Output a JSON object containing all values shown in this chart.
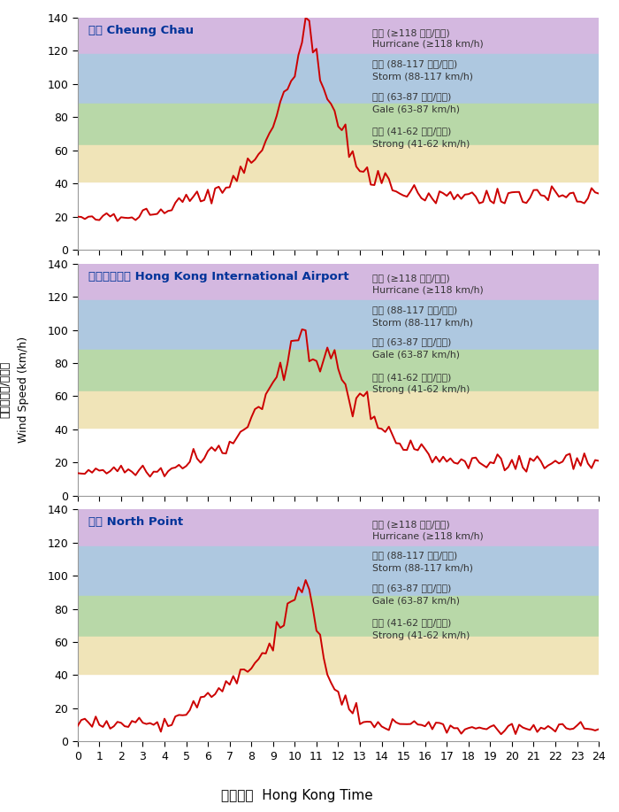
{
  "stations": [
    "长洲 Cheung Chau",
    "香港國際機場 Hong Kong International Airport",
    "北角 North Point"
  ],
  "ylabel_cn": "風速（公里/小時）",
  "ylabel_en": "Wind Speed (km/h)",
  "xlabel_cn": "香港時間",
  "xlabel_en": "Hong Kong Time",
  "wind_bands": [
    {
      "label_cn": "飆風 (≥118 公里/小時)",
      "label_en": "Hurricane (≥118 km/h)",
      "ymin": 118,
      "ymax": 140,
      "color": "#d4b8e0"
    },
    {
      "label_cn": "暴風 (88-117 公里/小時)",
      "label_en": "Storm (88-117 km/h)",
      "ymin": 88,
      "ymax": 118,
      "color": "#aec8e0"
    },
    {
      "label_cn": "烈風 (63-87 公里/小時)",
      "label_en": "Gale (63-87 km/h)",
      "ymin": 63,
      "ymax": 88,
      "color": "#b8d8a8"
    },
    {
      "label_cn": "強風 (41-62 公里/小時)",
      "label_en": "Strong (41-62 km/h)",
      "ymin": 41,
      "ymax": 63,
      "color": "#f0e4b8"
    },
    {
      "label_cn": "",
      "label_en": "",
      "ymin": 0,
      "ymax": 41,
      "color": "#ffffff"
    }
  ],
  "ylim": [
    0,
    140
  ],
  "xlim": [
    0,
    24
  ],
  "xticks": [
    0,
    1,
    2,
    3,
    4,
    5,
    6,
    7,
    8,
    9,
    10,
    11,
    12,
    13,
    14,
    15,
    16,
    17,
    18,
    19,
    20,
    21,
    22,
    23,
    24
  ],
  "yticks": [
    0,
    20,
    40,
    60,
    80,
    100,
    120,
    140
  ],
  "line_color": "#cc0000",
  "line_width": 1.4
}
